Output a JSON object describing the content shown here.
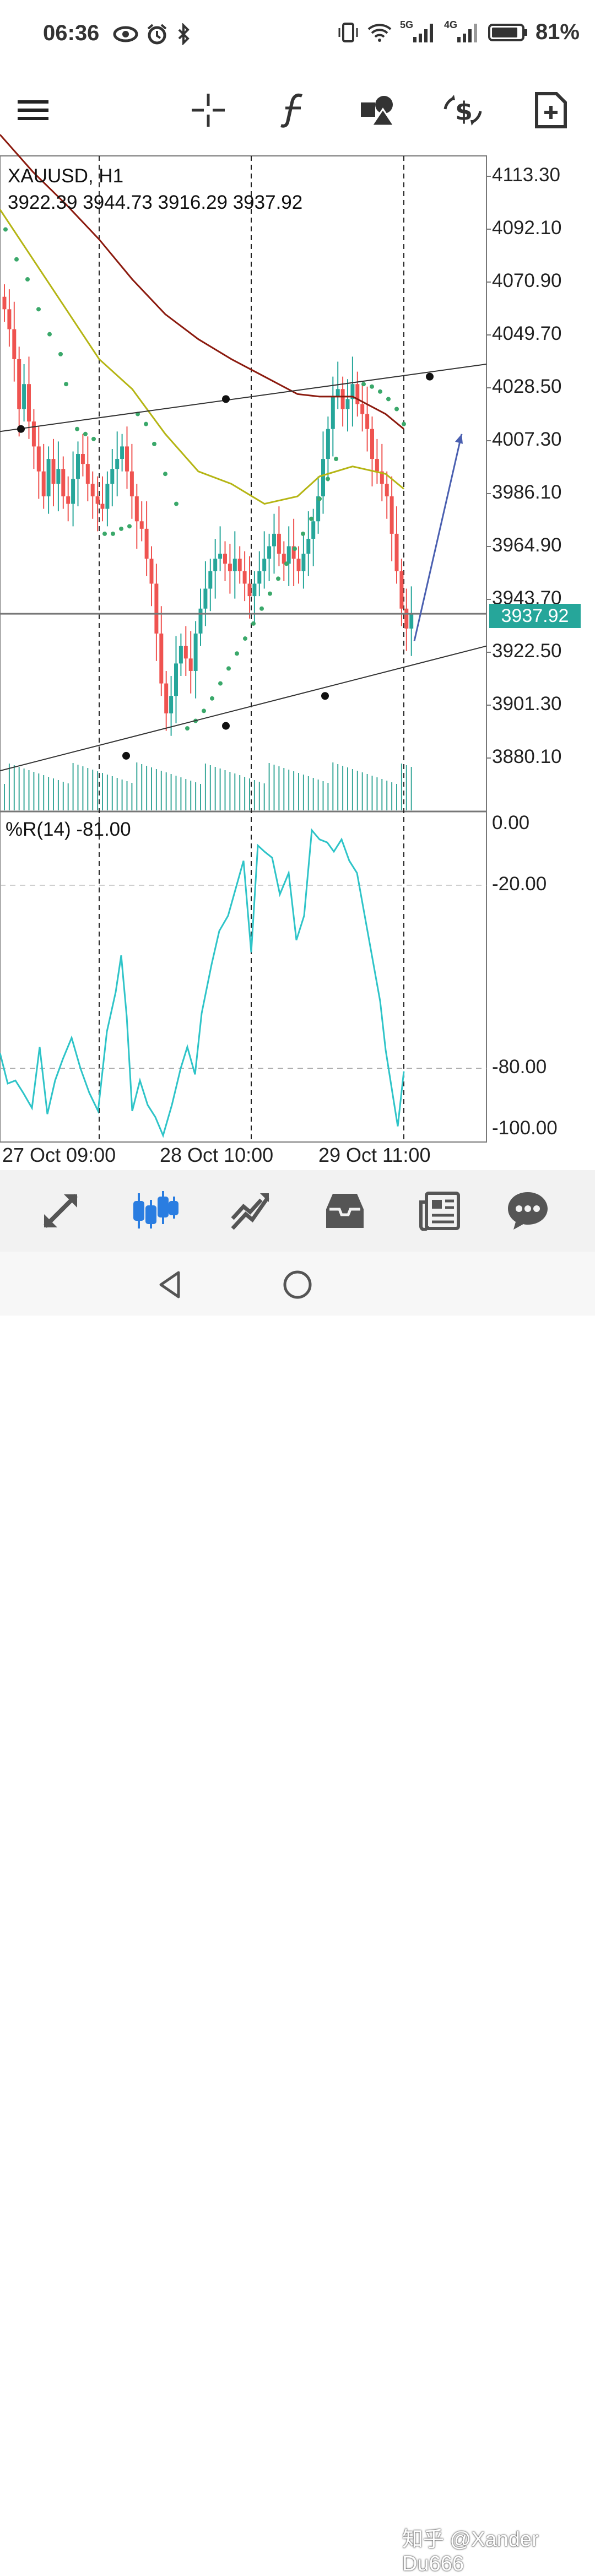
{
  "status_bar": {
    "time": "06:36",
    "battery_percent": "81%",
    "left_icons": [
      "eye-icon",
      "alarm-icon",
      "bluetooth-icon"
    ],
    "right_icons": [
      "vibrate-icon",
      "wifi-icon",
      "5g-signal-icon",
      "4g-signal-icon",
      "battery-icon"
    ],
    "network_labels": {
      "a": "5G",
      "b": "4G"
    }
  },
  "toolbar": {
    "icons": [
      "menu-icon",
      "crosshair-icon",
      "indicators-icon",
      "objects-icon",
      "trade-icon",
      "new-order-icon"
    ]
  },
  "chart": {
    "symbol": "XAUUSD, H1",
    "ohlc": "3922.39 3944.73 3916.29 3937.92",
    "current_price": "3937.92",
    "price_axis": [
      "4113.30",
      "4092.10",
      "4070.90",
      "4049.70",
      "4028.50",
      "4007.30",
      "3986.10",
      "3964.90",
      "3943.70",
      "3922.50",
      "3901.30",
      "3880.10"
    ],
    "time_axis": [
      "27 Oct 09:00",
      "28 Oct 10:00",
      "29 Oct 11:00"
    ],
    "colors": {
      "bull": "#26a69a",
      "bear": "#ef5350",
      "ma_fast": "#b5b514",
      "ma_slow": "#8b1a0e",
      "sar": "#3aa86a",
      "williams": "#2ec4c8",
      "arrow": "#4a5fb0"
    }
  },
  "indicator": {
    "label": "%R(14) -81.00",
    "levels": [
      "0.00",
      "-20.00",
      "-80.00",
      "-100.00"
    ]
  },
  "bottom_nav": {
    "items": [
      "quotes-icon",
      "chart-icon",
      "trade-icon",
      "history-icon",
      "news-icon",
      "messages-icon"
    ],
    "active": "chart-icon"
  },
  "watermark": "知乎 @Xander Du666"
}
